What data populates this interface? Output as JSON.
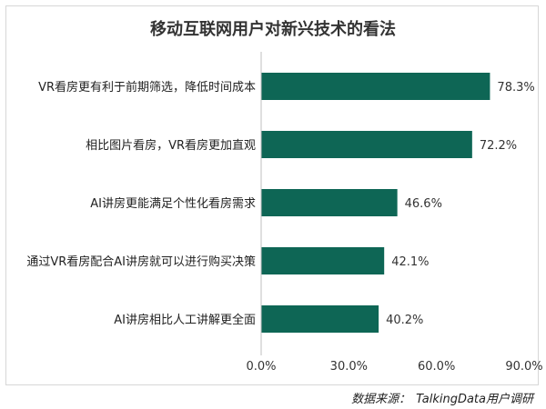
{
  "chart_data": {
    "type": "bar",
    "orientation": "horizontal",
    "title": "移动互联网用户对新兴技术的看法",
    "categories": [
      "VR看房更有利于前期筛选，降低时间成本",
      "相比图片看房，VR看房更加直观",
      "AI讲房更能满足个性化看房需求",
      "通过VR看房配合AI讲房就可以进行购买决策",
      "AI讲房相比人工讲解更全面"
    ],
    "values": [
      78.3,
      72.2,
      46.6,
      42.1,
      40.2
    ],
    "data_labels": [
      "78.3%",
      "72.2%",
      "46.6%",
      "42.1%",
      "40.2%"
    ],
    "xlim": [
      0,
      90
    ],
    "x_ticks": [
      "0.0%",
      "30.0%",
      "60.0%",
      "90.0%"
    ],
    "grid": false,
    "legend": "none",
    "bar_color": "#0e6655"
  },
  "source": {
    "label": "数据来源：",
    "text": "TalkingData用户调研"
  }
}
